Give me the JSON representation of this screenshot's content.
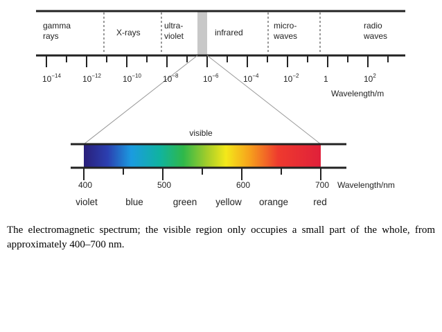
{
  "spectrum": {
    "regions": [
      {
        "lines": [
          "gamma",
          "rays"
        ]
      },
      {
        "lines": [
          "X-rays"
        ]
      },
      {
        "lines": [
          "ultra-",
          "violet"
        ]
      },
      {
        "lines": [
          "infrared"
        ]
      },
      {
        "lines": [
          "micro-",
          "waves"
        ]
      },
      {
        "lines": [
          "radio",
          "waves"
        ]
      }
    ],
    "ticks": [
      {
        "base": "10",
        "exponent": "−14"
      },
      {
        "base": "10",
        "exponent": "−12"
      },
      {
        "base": "10",
        "exponent": "−10"
      },
      {
        "base": "10",
        "exponent": "−8"
      },
      {
        "base": "10",
        "exponent": "−6"
      },
      {
        "base": "10",
        "exponent": "−4"
      },
      {
        "base": "10",
        "exponent": "−2"
      },
      {
        "base": "1"
      },
      {
        "base": "10",
        "exponent": "2"
      }
    ],
    "axis_label": "Wavelength/m"
  },
  "visible": {
    "label": "visible",
    "ticks": [
      "400",
      "500",
      "600",
      "700"
    ],
    "axis_label": "Wavelength/nm",
    "colors": [
      "violet",
      "blue",
      "green",
      "yellow",
      "orange",
      "red"
    ]
  },
  "caption": "The electromagnetic spectrum; the visible region only occupies a small part of the whole, from approximately 400–700 nm."
}
